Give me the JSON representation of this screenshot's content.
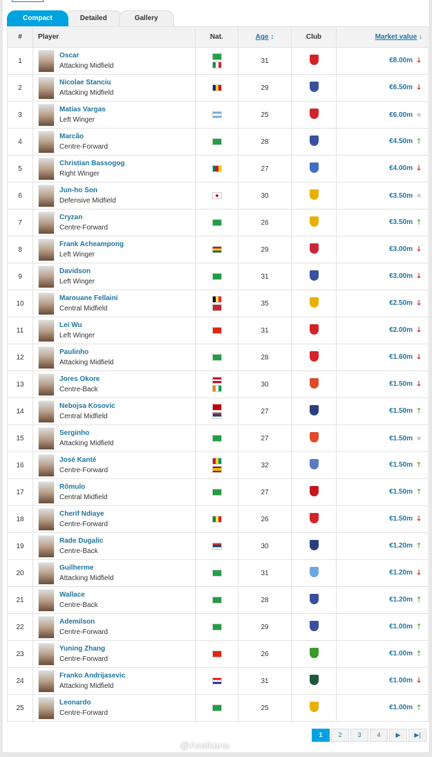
{
  "tabs": [
    "Compact",
    "Detailed",
    "Gallery"
  ],
  "headers": {
    "num": "#",
    "player": "Player",
    "nat": "Nat.",
    "age": "Age",
    "club": "Club",
    "mv": "Market value"
  },
  "colors": {
    "accent": "#00a3e0",
    "link": "#1d75a3",
    "up": "#5fa22e",
    "down": "#c4161c"
  },
  "rows": [
    {
      "n": "1",
      "name": "Oscar",
      "pos": "Attacking Midfield",
      "nat": [
        "Brazil",
        "Italy"
      ],
      "age": "31",
      "club": "#d2232a",
      "mv": "€8.00m",
      "trend": "down"
    },
    {
      "n": "2",
      "name": "Nicolae Stanciu",
      "pos": "Attacking Midfield",
      "nat": [
        "Romania"
      ],
      "age": "29",
      "club": "#3a4fa0",
      "mv": "€6.50m",
      "trend": "down"
    },
    {
      "n": "3",
      "name": "Matías Vargas",
      "pos": "Left Winger",
      "nat": [
        "Argentina"
      ],
      "age": "25",
      "club": "#d2232a",
      "mv": "€6.00m",
      "trend": "none"
    },
    {
      "n": "4",
      "name": "Marcão",
      "pos": "Centre-Forward",
      "nat": [
        "Brazil"
      ],
      "age": "28",
      "club": "#3a4fa0",
      "mv": "€4.50m",
      "trend": "up"
    },
    {
      "n": "5",
      "name": "Christian Bassogog",
      "pos": "Right Winger",
      "nat": [
        "Cameroon"
      ],
      "age": "27",
      "club": "#3f6fc6",
      "mv": "€4.00m",
      "trend": "down"
    },
    {
      "n": "6",
      "name": "Jun-ho Son",
      "pos": "Defensive Midfield",
      "nat": [
        "Korea, South"
      ],
      "age": "30",
      "club": "#e8b100",
      "mv": "€3.50m",
      "trend": "none"
    },
    {
      "n": "7",
      "name": "Cryzan",
      "pos": "Centre-Forward",
      "nat": [
        "Brazil"
      ],
      "age": "26",
      "club": "#e8b100",
      "mv": "€3.50m",
      "trend": "up"
    },
    {
      "n": "8",
      "name": "Frank Acheampong",
      "pos": "Left Winger",
      "nat": [
        "Ghana"
      ],
      "age": "29",
      "club": "#c8283c",
      "mv": "€3.00m",
      "trend": "down"
    },
    {
      "n": "9",
      "name": "Davidson",
      "pos": "Left Winger",
      "nat": [
        "Brazil"
      ],
      "age": "31",
      "club": "#3a4fa0",
      "mv": "€3.00m",
      "trend": "down"
    },
    {
      "n": "10",
      "name": "Marouane Fellaini",
      "pos": "Central Midfield",
      "nat": [
        "Belgium",
        "Morocco"
      ],
      "age": "35",
      "club": "#e8b100",
      "mv": "€2.50m",
      "trend": "down"
    },
    {
      "n": "11",
      "name": "Lei Wu",
      "pos": "Left Winger",
      "nat": [
        "China"
      ],
      "age": "31",
      "club": "#d2232a",
      "mv": "€2.00m",
      "trend": "down"
    },
    {
      "n": "12",
      "name": "Paulinho",
      "pos": "Attacking Midfield",
      "nat": [
        "Brazil"
      ],
      "age": "28",
      "club": "#d2232a",
      "mv": "€1.60m",
      "trend": "down"
    },
    {
      "n": "13",
      "name": "Jores Okore",
      "pos": "Centre-Back",
      "nat": [
        "Denmark",
        "Cote d'Ivoire"
      ],
      "age": "30",
      "club": "#e04a2a",
      "mv": "€1.50m",
      "trend": "down"
    },
    {
      "n": "14",
      "name": "Nebojsa Kosovic",
      "pos": "Central Midfield",
      "nat": [
        "Montenegro",
        "Serbia"
      ],
      "age": "27",
      "club": "#2a3f80",
      "mv": "€1.50m",
      "trend": "up"
    },
    {
      "n": "15",
      "name": "Serginho",
      "pos": "Attacking Midfield",
      "nat": [
        "Brazil"
      ],
      "age": "27",
      "club": "#e04a2a",
      "mv": "€1.50m",
      "trend": "none"
    },
    {
      "n": "16",
      "name": "José Kanté",
      "pos": "Centre-Forward",
      "nat": [
        "Guinea",
        "Spain"
      ],
      "age": "32",
      "club": "#5a7bc0",
      "mv": "€1.50m",
      "trend": "up"
    },
    {
      "n": "17",
      "name": "Rômulo",
      "pos": "Central Midfield",
      "nat": [
        "Brazil"
      ],
      "age": "27",
      "club": "#c4161c",
      "mv": "€1.50m",
      "trend": "up"
    },
    {
      "n": "18",
      "name": "Cherif Ndiaye",
      "pos": "Centre-Forward",
      "nat": [
        "Senegal"
      ],
      "age": "26",
      "club": "#d2232a",
      "mv": "€1.50m",
      "trend": "down"
    },
    {
      "n": "19",
      "name": "Rade Dugalic",
      "pos": "Centre-Back",
      "nat": [
        "Serbia"
      ],
      "age": "30",
      "club": "#2a3f80",
      "mv": "€1.20m",
      "trend": "up"
    },
    {
      "n": "20",
      "name": "Guilherme",
      "pos": "Attacking Midfield",
      "nat": [
        "Brazil"
      ],
      "age": "31",
      "club": "#6aa8e0",
      "mv": "€1.20m",
      "trend": "down"
    },
    {
      "n": "21",
      "name": "Wallace",
      "pos": "Centre-Back",
      "nat": [
        "Brazil"
      ],
      "age": "28",
      "club": "#3a4fa0",
      "mv": "€1.20m",
      "trend": "up"
    },
    {
      "n": "22",
      "name": "Ademilson",
      "pos": "Centre-Forward",
      "nat": [
        "Brazil"
      ],
      "age": "29",
      "club": "#3a4fa0",
      "mv": "€1.00m",
      "trend": "up"
    },
    {
      "n": "23",
      "name": "Yuning Zhang",
      "pos": "Centre-Forward",
      "nat": [
        "China"
      ],
      "age": "26",
      "club": "#3a9a2a",
      "mv": "€1.00m",
      "trend": "up"
    },
    {
      "n": "24",
      "name": "Franko Andrijasevic",
      "pos": "Attacking Midfield",
      "nat": [
        "Croatia"
      ],
      "age": "31",
      "club": "#1e5a3a",
      "mv": "€1.00m",
      "trend": "down"
    },
    {
      "n": "25",
      "name": "Leonardo",
      "pos": "Centre-Forward",
      "nat": [
        "Brazil"
      ],
      "age": "25",
      "club": "#e8b100",
      "mv": "€1.00m",
      "trend": "up"
    }
  ],
  "pagination": [
    "1",
    "2",
    "3",
    "4",
    "▶",
    "▶|"
  ],
  "watermark": "@Asaikana"
}
